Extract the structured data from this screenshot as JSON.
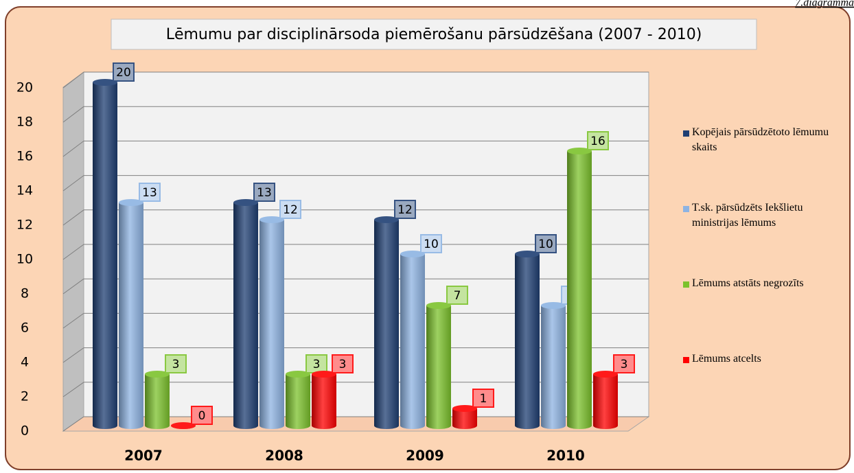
{
  "corner_label": "7.diagramma",
  "chart_data": {
    "type": "bar3d",
    "title": "Lēmumu par disciplinārsoda piemērošanu pārsūdzēšana (2007 - 2010)",
    "categories": [
      "2007",
      "2008",
      "2009",
      "2010"
    ],
    "series": [
      {
        "name": "Kopējais pārsūdzētoto lēmumu skaits",
        "color": "#1f3f73",
        "values": [
          20,
          13,
          12,
          10
        ]
      },
      {
        "name": "T.sk. pārsūdzēts Iekšlietu ministrijas lēmums",
        "color": "#8db3e2",
        "values": [
          13,
          12,
          10,
          7
        ]
      },
      {
        "name": "Lēmums atstāts negrozīts",
        "color": "#7cc22c",
        "values": [
          3,
          3,
          7,
          16
        ]
      },
      {
        "name": "Lēmums atcelts",
        "color": "#ff0000",
        "values": [
          0,
          3,
          1,
          3
        ]
      }
    ],
    "ylim": [
      0,
      20
    ],
    "yticks": [
      0,
      2,
      4,
      6,
      8,
      10,
      12,
      14,
      16,
      18,
      20
    ],
    "grid": true,
    "legend": "right"
  }
}
